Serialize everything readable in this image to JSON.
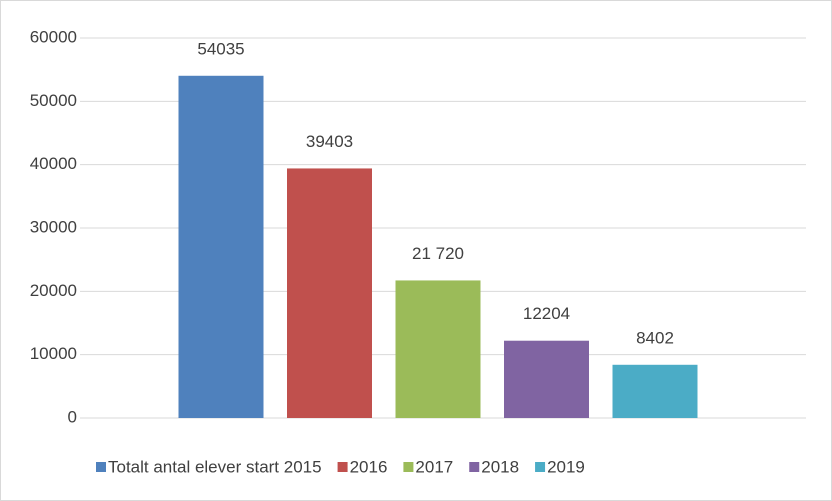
{
  "chart_data": {
    "type": "bar",
    "categories": [
      null
    ],
    "series": [
      {
        "name": "Totalt antal elever start 2015",
        "color": "#4f81bd",
        "values": [
          54035
        ]
      },
      {
        "name": "2016",
        "color": "#c0504d",
        "values": [
          39403
        ]
      },
      {
        "name": "2017",
        "color": "#9bbb59",
        "values": [
          21720
        ],
        "value_labels": [
          "21 720"
        ]
      },
      {
        "name": "2018",
        "color": "#8064a2",
        "values": [
          12204
        ]
      },
      {
        "name": "2019",
        "color": "#4bacc6",
        "values": [
          8402
        ]
      }
    ],
    "ylim": [
      0,
      60000
    ],
    "yticks": [
      0,
      10000,
      20000,
      30000,
      40000,
      50000,
      60000
    ],
    "grid": true,
    "legend": "bottom"
  }
}
